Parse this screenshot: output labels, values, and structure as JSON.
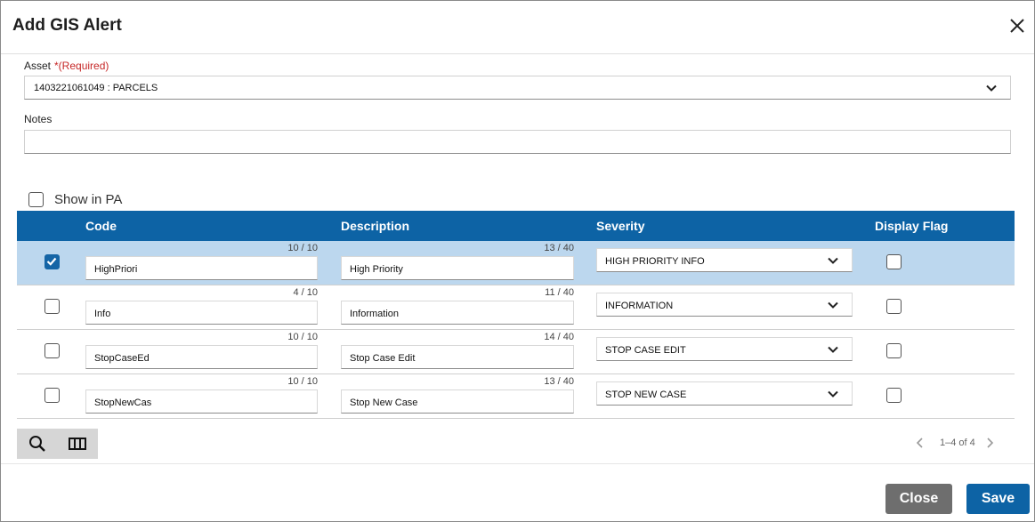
{
  "dialog": {
    "title": "Add GIS Alert"
  },
  "asset": {
    "label": "Asset",
    "required": "*(Required)",
    "value": "1403221061049 : PARCELS"
  },
  "notes": {
    "label": "Notes",
    "value": ""
  },
  "show_in_pa": {
    "label": "Show in PA",
    "checked": false
  },
  "grid": {
    "columns": [
      "Code",
      "Description",
      "Severity",
      "Display Flag"
    ],
    "rows": [
      {
        "selected": true,
        "code": "HighPriori",
        "code_count": "10 / 10",
        "description": "High Priority",
        "desc_count": "13 / 40",
        "severity": "HIGH PRIORITY INFO",
        "display_flag": false
      },
      {
        "selected": false,
        "code": "Info",
        "code_count": "4 / 10",
        "description": "Information",
        "desc_count": "11 / 40",
        "severity": "INFORMATION",
        "display_flag": false
      },
      {
        "selected": false,
        "code": "StopCaseEd",
        "code_count": "10 / 10",
        "description": "Stop Case Edit",
        "desc_count": "14 / 40",
        "severity": "STOP CASE EDIT",
        "display_flag": false
      },
      {
        "selected": false,
        "code": "StopNewCas",
        "code_count": "10 / 10",
        "description": "Stop New Case",
        "desc_count": "13 / 40",
        "severity": "STOP NEW CASE",
        "display_flag": false
      }
    ],
    "pager": "1–4 of 4"
  },
  "icons": {
    "close": "close-icon",
    "chevron": "chevron-down-icon",
    "search": "search-icon",
    "columns": "columns-icon",
    "prev": "chevron-left-icon",
    "next": "chevron-right-icon"
  },
  "colors": {
    "accent": "#0d63a5",
    "selected_row": "#bcd7ee",
    "required": "#c62828",
    "close_button": "#6e6e6e"
  },
  "footer": {
    "close_label": "Close",
    "save_label": "Save"
  }
}
